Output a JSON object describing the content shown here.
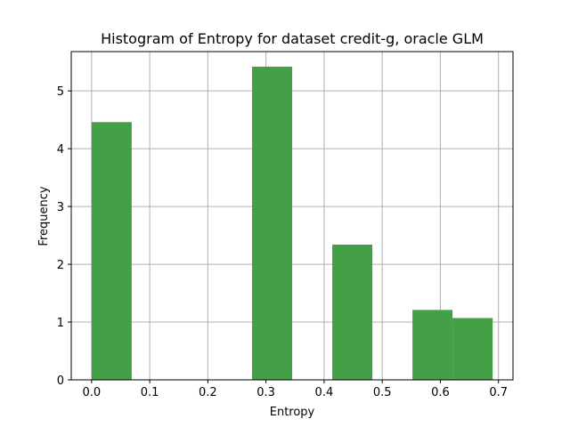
{
  "chart_data": {
    "type": "bar",
    "title": "Histogram of Entropy for dataset credit-g, oracle GLM",
    "xlabel": "Entropy",
    "ylabel": "Frequency",
    "bar_color": "#43a047",
    "grid": true,
    "xlim": [
      -0.035,
      0.725
    ],
    "ylim": [
      0,
      5.68
    ],
    "xticks": [
      0.0,
      0.1,
      0.2,
      0.3,
      0.4,
      0.5,
      0.6,
      0.7
    ],
    "xtick_labels": [
      "0.0",
      "0.1",
      "0.2",
      "0.3",
      "0.4",
      "0.5",
      "0.6",
      "0.7"
    ],
    "yticks": [
      0,
      1,
      2,
      3,
      4,
      5
    ],
    "ytick_labels": [
      "0",
      "1",
      "2",
      "3",
      "4",
      "5"
    ],
    "bins": [
      {
        "x0": 0.0,
        "x1": 0.069,
        "value": 4.46
      },
      {
        "x0": 0.069,
        "x1": 0.138,
        "value": 0
      },
      {
        "x0": 0.138,
        "x1": 0.207,
        "value": 0
      },
      {
        "x0": 0.207,
        "x1": 0.276,
        "value": 0
      },
      {
        "x0": 0.276,
        "x1": 0.345,
        "value": 5.42
      },
      {
        "x0": 0.345,
        "x1": 0.414,
        "value": 0
      },
      {
        "x0": 0.414,
        "x1": 0.483,
        "value": 2.34
      },
      {
        "x0": 0.483,
        "x1": 0.552,
        "value": 0
      },
      {
        "x0": 0.552,
        "x1": 0.621,
        "value": 1.21
      },
      {
        "x0": 0.621,
        "x1": 0.69,
        "value": 1.07
      }
    ]
  }
}
